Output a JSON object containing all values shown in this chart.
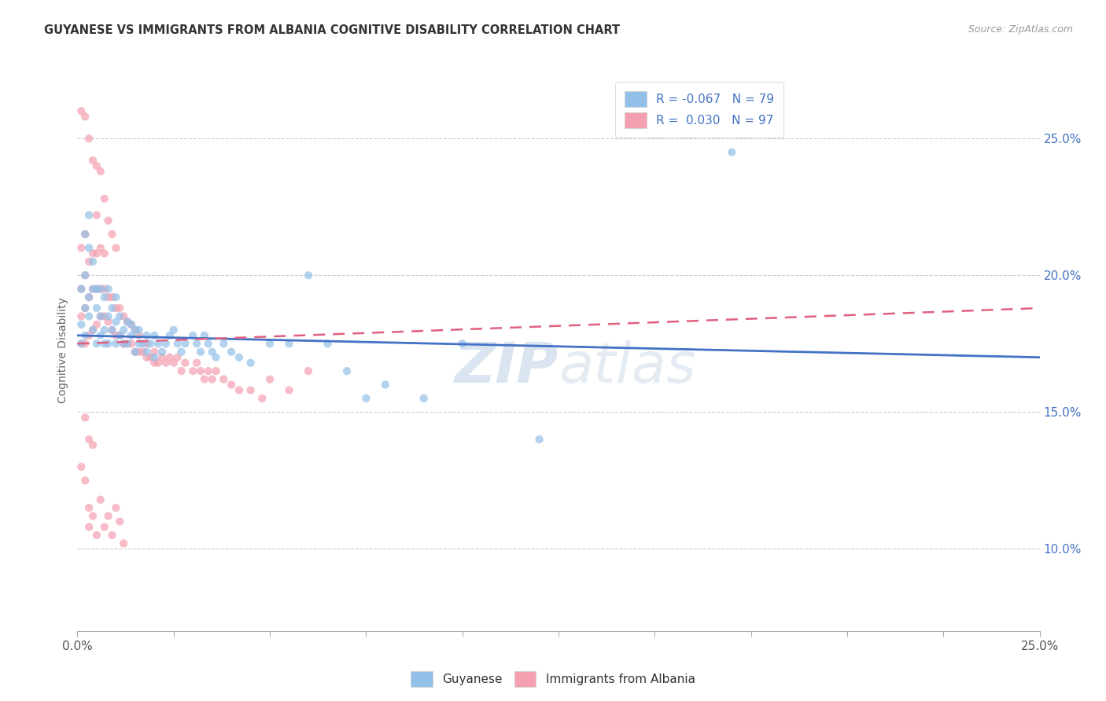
{
  "title": "GUYANESE VS IMMIGRANTS FROM ALBANIA COGNITIVE DISABILITY CORRELATION CHART",
  "source": "Source: ZipAtlas.com",
  "ylabel": "Cognitive Disability",
  "right_ytick_vals": [
    0.1,
    0.15,
    0.2,
    0.25
  ],
  "legend_blue_r": "R = -0.067",
  "legend_blue_n": "N = 79",
  "legend_pink_r": "R =  0.030",
  "legend_pink_n": "N = 97",
  "legend_blue_label": "Guyanese",
  "legend_pink_label": "Immigrants from Albania",
  "blue_color": "#92C0E8",
  "pink_color": "#F4A0B0",
  "blue_line_color": "#4472C4",
  "pink_line_color": "#E06080",
  "watermark_zip": "ZIP",
  "watermark_atlas": "atlas",
  "xlim": [
    0.0,
    0.25
  ],
  "ylim": [
    0.07,
    0.275
  ],
  "scatter_alpha": 0.7,
  "scatter_size": 55,
  "blue_x": [
    0.001,
    0.001,
    0.001,
    0.002,
    0.002,
    0.002,
    0.002,
    0.003,
    0.003,
    0.003,
    0.003,
    0.004,
    0.004,
    0.004,
    0.005,
    0.005,
    0.005,
    0.006,
    0.006,
    0.006,
    0.007,
    0.007,
    0.007,
    0.008,
    0.008,
    0.008,
    0.009,
    0.009,
    0.01,
    0.01,
    0.01,
    0.011,
    0.011,
    0.012,
    0.012,
    0.013,
    0.013,
    0.014,
    0.014,
    0.015,
    0.015,
    0.016,
    0.016,
    0.017,
    0.018,
    0.018,
    0.019,
    0.02,
    0.02,
    0.021,
    0.022,
    0.023,
    0.024,
    0.025,
    0.026,
    0.027,
    0.028,
    0.03,
    0.031,
    0.032,
    0.033,
    0.034,
    0.035,
    0.036,
    0.038,
    0.04,
    0.042,
    0.045,
    0.05,
    0.055,
    0.06,
    0.065,
    0.07,
    0.075,
    0.08,
    0.09,
    0.1,
    0.12,
    0.17
  ],
  "blue_y": [
    0.175,
    0.182,
    0.195,
    0.178,
    0.188,
    0.2,
    0.215,
    0.185,
    0.192,
    0.21,
    0.222,
    0.18,
    0.195,
    0.205,
    0.188,
    0.195,
    0.175,
    0.185,
    0.178,
    0.195,
    0.18,
    0.192,
    0.175,
    0.185,
    0.175,
    0.195,
    0.18,
    0.188,
    0.175,
    0.183,
    0.192,
    0.178,
    0.185,
    0.175,
    0.18,
    0.175,
    0.183,
    0.178,
    0.182,
    0.172,
    0.18,
    0.175,
    0.18,
    0.175,
    0.172,
    0.178,
    0.175,
    0.17,
    0.178,
    0.175,
    0.172,
    0.175,
    0.178,
    0.18,
    0.175,
    0.172,
    0.175,
    0.178,
    0.175,
    0.172,
    0.178,
    0.175,
    0.172,
    0.17,
    0.175,
    0.172,
    0.17,
    0.168,
    0.175,
    0.175,
    0.2,
    0.175,
    0.165,
    0.155,
    0.16,
    0.155,
    0.175,
    0.14,
    0.245
  ],
  "pink_x": [
    0.001,
    0.001,
    0.001,
    0.001,
    0.001,
    0.002,
    0.002,
    0.002,
    0.002,
    0.002,
    0.003,
    0.003,
    0.003,
    0.003,
    0.004,
    0.004,
    0.004,
    0.004,
    0.005,
    0.005,
    0.005,
    0.005,
    0.005,
    0.006,
    0.006,
    0.006,
    0.006,
    0.007,
    0.007,
    0.007,
    0.007,
    0.008,
    0.008,
    0.008,
    0.009,
    0.009,
    0.009,
    0.01,
    0.01,
    0.01,
    0.011,
    0.011,
    0.012,
    0.012,
    0.013,
    0.013,
    0.014,
    0.014,
    0.015,
    0.015,
    0.016,
    0.016,
    0.017,
    0.018,
    0.018,
    0.019,
    0.02,
    0.02,
    0.021,
    0.022,
    0.023,
    0.024,
    0.025,
    0.026,
    0.027,
    0.028,
    0.03,
    0.031,
    0.032,
    0.033,
    0.034,
    0.035,
    0.036,
    0.038,
    0.04,
    0.042,
    0.045,
    0.048,
    0.05,
    0.055,
    0.06,
    0.001,
    0.002,
    0.003,
    0.003,
    0.004,
    0.005,
    0.006,
    0.007,
    0.008,
    0.009,
    0.01,
    0.011,
    0.012,
    0.002,
    0.003,
    0.004
  ],
  "pink_y": [
    0.175,
    0.185,
    0.195,
    0.21,
    0.26,
    0.175,
    0.188,
    0.2,
    0.215,
    0.258,
    0.178,
    0.192,
    0.205,
    0.25,
    0.18,
    0.195,
    0.208,
    0.242,
    0.182,
    0.195,
    0.208,
    0.222,
    0.24,
    0.185,
    0.195,
    0.21,
    0.238,
    0.185,
    0.195,
    0.208,
    0.228,
    0.183,
    0.192,
    0.22,
    0.18,
    0.192,
    0.215,
    0.178,
    0.188,
    0.21,
    0.178,
    0.188,
    0.175,
    0.185,
    0.175,
    0.183,
    0.175,
    0.182,
    0.172,
    0.18,
    0.172,
    0.178,
    0.172,
    0.17,
    0.175,
    0.17,
    0.168,
    0.172,
    0.168,
    0.17,
    0.168,
    0.17,
    0.168,
    0.17,
    0.165,
    0.168,
    0.165,
    0.168,
    0.165,
    0.162,
    0.165,
    0.162,
    0.165,
    0.162,
    0.16,
    0.158,
    0.158,
    0.155,
    0.162,
    0.158,
    0.165,
    0.13,
    0.125,
    0.115,
    0.108,
    0.112,
    0.105,
    0.118,
    0.108,
    0.112,
    0.105,
    0.115,
    0.11,
    0.102,
    0.148,
    0.14,
    0.138
  ]
}
